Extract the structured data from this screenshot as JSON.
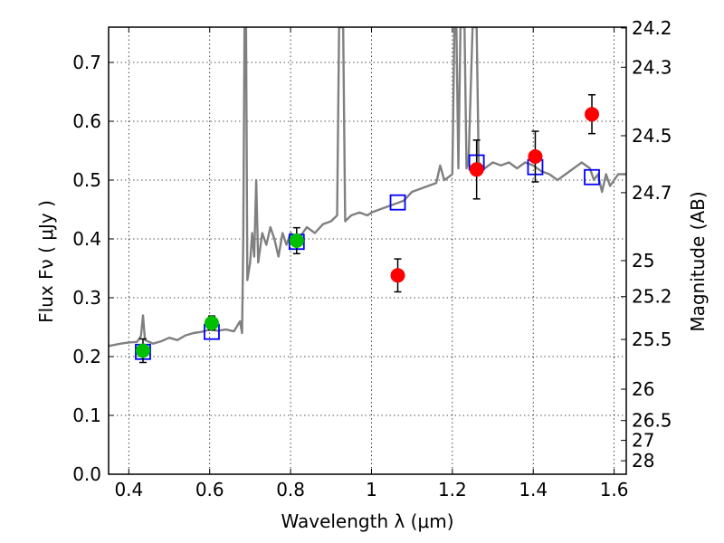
{
  "chart_data": {
    "type": "scatter",
    "xlabel": "Wavelength  λ (μm)",
    "ylabel": "Flux  Fν  ( μJy )",
    "right_ylabel": "Magnitude (AB)",
    "xlim": [
      0.35,
      1.63
    ],
    "ylim": [
      0.0,
      0.76
    ],
    "grid": true,
    "x_ticks": [
      0.4,
      0.6,
      0.8,
      1.0,
      1.2,
      1.4,
      1.6
    ],
    "x_tick_labels": [
      "0.4",
      "0.6",
      "0.8",
      "1",
      "1.2",
      "1.4",
      "1.6"
    ],
    "y_ticks": [
      0.0,
      0.1,
      0.2,
      0.3,
      0.4,
      0.5,
      0.6,
      0.7
    ],
    "y_tick_labels": [
      "0.0",
      "0.1",
      "0.2",
      "0.3",
      "0.4",
      "0.5",
      "0.6",
      "0.7"
    ],
    "right_ticks": [
      {
        "label": "24.2",
        "value": 24.2
      },
      {
        "label": "24.3",
        "value": 24.3
      },
      {
        "label": "24.5",
        "value": 24.5
      },
      {
        "label": "24.7",
        "value": 24.7
      },
      {
        "label": "25",
        "value": 25.0
      },
      {
        "label": "25.2",
        "value": 25.2
      },
      {
        "label": "25.5",
        "value": 25.5
      },
      {
        "label": "26",
        "value": 26.0
      },
      {
        "label": "26.5",
        "value": 26.5
      },
      {
        "label": "27",
        "value": 27.0
      },
      {
        "label": "28",
        "value": 28.0
      }
    ],
    "series": [
      {
        "kind": "spectrum-line",
        "color": "#808080",
        "points": [
          [
            0.35,
            0.218
          ],
          [
            0.38,
            0.222
          ],
          [
            0.4,
            0.224
          ],
          [
            0.42,
            0.225
          ],
          [
            0.43,
            0.235
          ],
          [
            0.435,
            0.27
          ],
          [
            0.44,
            0.228
          ],
          [
            0.46,
            0.222
          ],
          [
            0.48,
            0.226
          ],
          [
            0.5,
            0.232
          ],
          [
            0.52,
            0.228
          ],
          [
            0.54,
            0.236
          ],
          [
            0.56,
            0.24
          ],
          [
            0.58,
            0.242
          ],
          [
            0.6,
            0.246
          ],
          [
            0.62,
            0.244
          ],
          [
            0.64,
            0.246
          ],
          [
            0.66,
            0.243
          ],
          [
            0.675,
            0.26
          ],
          [
            0.68,
            0.24
          ],
          [
            0.683,
            0.4
          ],
          [
            0.686,
            0.76
          ],
          [
            0.69,
            0.76
          ],
          [
            0.693,
            0.33
          ],
          [
            0.7,
            0.36
          ],
          [
            0.705,
            0.41
          ],
          [
            0.71,
            0.37
          ],
          [
            0.715,
            0.5
          ],
          [
            0.72,
            0.36
          ],
          [
            0.73,
            0.41
          ],
          [
            0.74,
            0.39
          ],
          [
            0.75,
            0.42
          ],
          [
            0.76,
            0.4
          ],
          [
            0.77,
            0.37
          ],
          [
            0.78,
            0.41
          ],
          [
            0.79,
            0.39
          ],
          [
            0.8,
            0.41
          ],
          [
            0.82,
            0.4
          ],
          [
            0.84,
            0.42
          ],
          [
            0.86,
            0.41
          ],
          [
            0.88,
            0.425
          ],
          [
            0.9,
            0.43
          ],
          [
            0.915,
            0.44
          ],
          [
            0.92,
            0.76
          ],
          [
            0.93,
            0.76
          ],
          [
            0.935,
            0.43
          ],
          [
            0.95,
            0.44
          ],
          [
            0.97,
            0.445
          ],
          [
            0.99,
            0.44
          ],
          [
            1.0,
            0.445
          ],
          [
            1.02,
            0.45
          ],
          [
            1.04,
            0.455
          ],
          [
            1.06,
            0.46
          ],
          [
            1.08,
            0.465
          ],
          [
            1.1,
            0.48
          ],
          [
            1.12,
            0.485
          ],
          [
            1.14,
            0.49
          ],
          [
            1.16,
            0.495
          ],
          [
            1.17,
            0.525
          ],
          [
            1.18,
            0.5
          ],
          [
            1.19,
            0.505
          ],
          [
            1.2,
            0.51
          ],
          [
            1.205,
            0.76
          ],
          [
            1.21,
            0.76
          ],
          [
            1.215,
            0.52
          ],
          [
            1.22,
            0.76
          ],
          [
            1.23,
            0.76
          ],
          [
            1.235,
            0.52
          ],
          [
            1.24,
            0.53
          ],
          [
            1.25,
            0.76
          ],
          [
            1.26,
            0.76
          ],
          [
            1.265,
            0.53
          ],
          [
            1.28,
            0.52
          ],
          [
            1.3,
            0.53
          ],
          [
            1.32,
            0.525
          ],
          [
            1.34,
            0.53
          ],
          [
            1.36,
            0.52
          ],
          [
            1.38,
            0.53
          ],
          [
            1.4,
            0.525
          ],
          [
            1.42,
            0.515
          ],
          [
            1.44,
            0.51
          ],
          [
            1.46,
            0.5
          ],
          [
            1.48,
            0.51
          ],
          [
            1.5,
            0.52
          ],
          [
            1.52,
            0.53
          ],
          [
            1.54,
            0.52
          ],
          [
            1.55,
            0.5
          ],
          [
            1.56,
            0.51
          ],
          [
            1.57,
            0.48
          ],
          [
            1.58,
            0.51
          ],
          [
            1.59,
            0.49
          ],
          [
            1.6,
            0.5
          ],
          [
            1.61,
            0.51
          ],
          [
            1.63,
            0.51
          ]
        ]
      },
      {
        "kind": "open-squares",
        "color": "#0000ff",
        "points": [
          {
            "x": 0.435,
            "y": 0.208
          },
          {
            "x": 0.605,
            "y": 0.242
          },
          {
            "x": 0.815,
            "y": 0.395
          },
          {
            "x": 1.065,
            "y": 0.462
          },
          {
            "x": 1.26,
            "y": 0.53
          },
          {
            "x": 1.405,
            "y": 0.522
          },
          {
            "x": 1.545,
            "y": 0.505
          }
        ]
      },
      {
        "kind": "filled-circles",
        "color": "#00bf00",
        "points": [
          {
            "x": 0.435,
            "y": 0.21,
            "err": 0.02
          },
          {
            "x": 0.605,
            "y": 0.257,
            "err": 0.012
          },
          {
            "x": 0.815,
            "y": 0.397,
            "err": 0.022
          }
        ]
      },
      {
        "kind": "filled-circles",
        "color": "#ff0000",
        "points": [
          {
            "x": 1.065,
            "y": 0.338,
            "err": 0.028
          },
          {
            "x": 1.26,
            "y": 0.518,
            "err": 0.05
          },
          {
            "x": 1.405,
            "y": 0.54,
            "err": 0.043
          },
          {
            "x": 1.545,
            "y": 0.612,
            "err": 0.033
          }
        ]
      }
    ]
  }
}
